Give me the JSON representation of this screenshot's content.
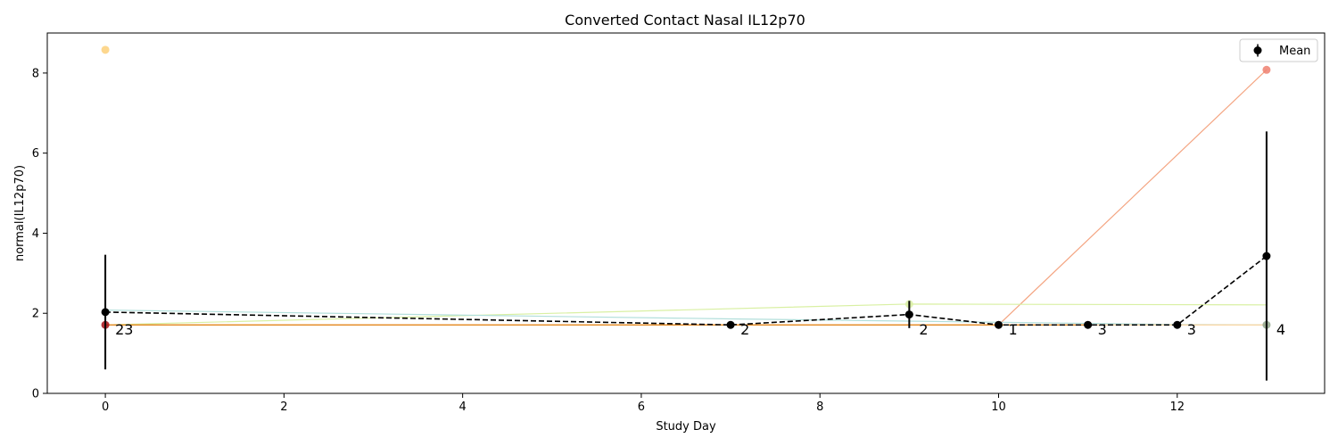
{
  "chart_data": {
    "type": "line",
    "title": "Converted Contact Nasal IL12p70",
    "xlabel": "Study Day",
    "ylabel": "normal(IL12p70)",
    "xlim": [
      -0.65,
      13.65
    ],
    "ylim": [
      0,
      9
    ],
    "xticks": [
      0,
      2,
      4,
      6,
      8,
      10,
      12
    ],
    "yticks": [
      0,
      2,
      4,
      6,
      8
    ],
    "grid": false,
    "legend": {
      "placement": "top-right",
      "entries": [
        "Mean"
      ]
    },
    "mean_series": {
      "name": "Mean",
      "color": "#000000",
      "points": [
        {
          "x": 0,
          "y": 2.03,
          "err_low": 0.6,
          "err_high": 3.46,
          "n": "23"
        },
        {
          "x": 7,
          "y": 1.71,
          "err_low": 1.71,
          "err_high": 1.71,
          "n": "2"
        },
        {
          "x": 9,
          "y": 1.97,
          "err_low": 1.63,
          "err_high": 2.31,
          "n": "2"
        },
        {
          "x": 10,
          "y": 1.71,
          "err_low": 1.71,
          "err_high": 1.71,
          "n": "1"
        },
        {
          "x": 11,
          "y": 1.71,
          "err_low": 1.71,
          "err_high": 1.71,
          "n": "3"
        },
        {
          "x": 12,
          "y": 1.71,
          "err_low": 1.71,
          "err_high": 1.71,
          "n": "3"
        },
        {
          "x": 13,
          "y": 3.43,
          "err_low": 0.32,
          "err_high": 6.54,
          "n": "4"
        }
      ]
    },
    "subject_series": [
      {
        "color": "#f4a582",
        "points": [
          [
            0,
            1.71
          ],
          [
            10,
            1.71
          ],
          [
            13,
            8.08
          ]
        ]
      },
      {
        "color": "#d9f0a3",
        "points": [
          [
            0,
            1.71
          ],
          [
            9,
            2.23
          ],
          [
            13,
            2.21
          ]
        ]
      },
      {
        "color": "#b2dfdb",
        "points": [
          [
            0,
            2.08
          ],
          [
            7,
            1.86
          ],
          [
            12,
            1.72
          ],
          [
            13,
            1.71
          ]
        ]
      },
      {
        "color": "#fdd49e",
        "points": [
          [
            0,
            1.71
          ],
          [
            9,
            1.71
          ],
          [
            13,
            1.71
          ]
        ]
      },
      {
        "color": "#e08214",
        "points": [
          [
            0,
            1.71
          ],
          [
            7,
            1.71
          ],
          [
            11,
            1.71
          ]
        ]
      }
    ],
    "scatter_points": [
      {
        "x": 0,
        "y": 8.58,
        "color": "#fdd07a"
      },
      {
        "x": 0,
        "y": 1.71,
        "color": "#a50f15"
      },
      {
        "x": 13,
        "y": 8.08,
        "color": "#ef8070"
      },
      {
        "x": 13,
        "y": 1.71,
        "color": "#8fa48a"
      },
      {
        "x": 9,
        "y": 2.23,
        "color": "#d9f0a3"
      }
    ]
  }
}
